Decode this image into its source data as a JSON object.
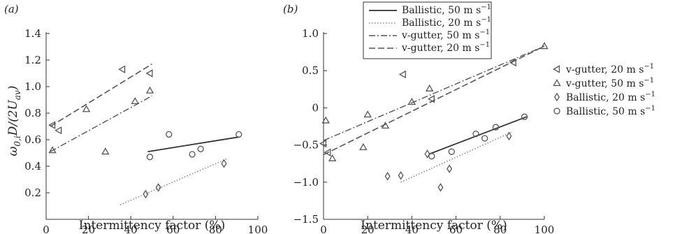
{
  "chart_data": [
    {
      "panel": "(a)",
      "type": "scatter",
      "xlabel": "Intermittency factor (%)",
      "ylabel": "ω0,iD/(2Uav)",
      "xlim": [
        0,
        100
      ],
      "ylim": [
        0,
        1.4
      ],
      "xticks": [
        0,
        20,
        40,
        60,
        80,
        100
      ],
      "yticks": [
        0.2,
        0.4,
        0.6,
        0.8,
        1.0,
        1.2,
        1.4
      ],
      "ytick_labels": [
        "0.2",
        "0.4",
        "0.6",
        "0.8",
        "1.0",
        "1.2",
        "1.4"
      ],
      "grid": false,
      "series": [
        {
          "key": "vg20",
          "marker": "triangle-left",
          "x": [
            3,
            6,
            36,
            49
          ],
          "y": [
            0.71,
            0.67,
            1.13,
            1.1
          ]
        },
        {
          "key": "vg50",
          "marker": "triangle-up",
          "x": [
            3,
            19,
            28,
            42,
            49
          ],
          "y": [
            0.52,
            0.83,
            0.51,
            0.89,
            0.97
          ]
        },
        {
          "key": "b20",
          "marker": "diamond",
          "x": [
            47,
            53,
            84
          ],
          "y": [
            0.19,
            0.24,
            0.42
          ]
        },
        {
          "key": "b50",
          "marker": "circle",
          "x": [
            49,
            58,
            69,
            73,
            91
          ],
          "y": [
            0.47,
            0.64,
            0.49,
            0.53,
            0.64
          ]
        }
      ],
      "fits": [
        {
          "key": "ballistic50",
          "x": [
            48,
            91
          ],
          "y": [
            0.51,
            0.62
          ]
        },
        {
          "key": "ballistic20",
          "x": [
            35,
            86
          ],
          "y": [
            0.11,
            0.46
          ]
        },
        {
          "key": "vgutter50",
          "x": [
            2,
            50
          ],
          "y": [
            0.51,
            0.93
          ]
        },
        {
          "key": "vgutter20",
          "x": [
            2,
            50
          ],
          "y": [
            0.7,
            1.17
          ]
        }
      ]
    },
    {
      "panel": "(b)",
      "type": "scatter",
      "xlabel": "Intermittency factor (%)",
      "ylabel": "",
      "xlim": [
        0,
        100
      ],
      "ylim": [
        -1.5,
        1.0
      ],
      "xticks": [
        0,
        20,
        40,
        60,
        80,
        100
      ],
      "yticks": [
        -1.5,
        -1.0,
        -0.5,
        0,
        0.5,
        1.0
      ],
      "ytick_labels": [
        "−1.5",
        "−1.0",
        "−0.5",
        "0",
        "0.5",
        "1.0"
      ],
      "grid": false,
      "legend_lines": [
        {
          "key": "ballistic50",
          "label": "Ballistic, 50 m s",
          "sup": "−1"
        },
        {
          "key": "ballistic20",
          "label": "Ballistic, 20 m s",
          "sup": "−1"
        },
        {
          "key": "vgutter50",
          "label": "v-gutter, 50 m s",
          "sup": "−1"
        },
        {
          "key": "vgutter20",
          "label": "v-gutter, 20 m s",
          "sup": "−1"
        }
      ],
      "legend_markers": [
        {
          "key": "vg20",
          "label": "v-gutter, 20 m s",
          "sup": "−1"
        },
        {
          "key": "vg50",
          "label": "v-gutter, 50 m s",
          "sup": "−1"
        },
        {
          "key": "b20",
          "label": "Ballistic, 20 m s",
          "sup": "−1"
        },
        {
          "key": "b50",
          "label": "Ballistic, 50 m s",
          "sup": "−1"
        }
      ],
      "series": [
        {
          "key": "vg20",
          "marker": "triangle-left",
          "x": [
            0,
            2,
            36,
            49,
            86
          ],
          "y": [
            -0.48,
            -0.6,
            0.45,
            0.12,
            0.61
          ]
        },
        {
          "key": "vg50",
          "marker": "triangle-up",
          "x": [
            1,
            4,
            18,
            20,
            28,
            40,
            48,
            100
          ],
          "y": [
            -0.17,
            -0.68,
            -0.53,
            -0.09,
            -0.24,
            0.08,
            0.26,
            0.83
          ]
        },
        {
          "key": "b20",
          "marker": "diamond",
          "x": [
            29,
            35,
            47,
            53,
            57,
            84
          ],
          "y": [
            -0.92,
            -0.91,
            -0.62,
            -1.07,
            -0.82,
            -0.38
          ]
        },
        {
          "key": "b50",
          "marker": "circle",
          "x": [
            49,
            58,
            69,
            73,
            78,
            91
          ],
          "y": [
            -0.65,
            -0.59,
            -0.35,
            -0.41,
            -0.26,
            -0.12
          ]
        }
      ],
      "fits": [
        {
          "key": "ballistic50",
          "x": [
            48,
            92
          ],
          "y": [
            -0.62,
            -0.12
          ]
        },
        {
          "key": "ballistic20",
          "x": [
            35,
            85
          ],
          "y": [
            -1.0,
            -0.33
          ]
        },
        {
          "key": "vgutter50",
          "x": [
            0,
            100
          ],
          "y": [
            -0.44,
            0.83
          ]
        },
        {
          "key": "vgutter20",
          "x": [
            0,
            100
          ],
          "y": [
            -0.63,
            0.83
          ]
        }
      ]
    }
  ]
}
